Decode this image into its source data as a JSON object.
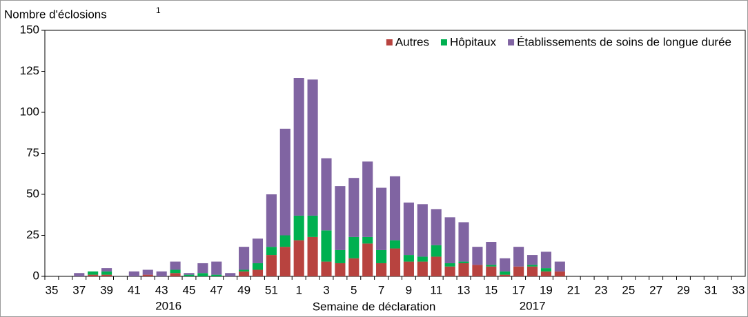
{
  "chart_data": {
    "type": "stacked_bar",
    "y_label": "Nombre d'éclosions",
    "y_label_superscript": "1",
    "x_label": "Semaine de déclaration",
    "x_group_labels": [
      "2016",
      "2017"
    ],
    "categories": [
      "35",
      null,
      "37",
      null,
      "39",
      null,
      "41",
      null,
      "43",
      null,
      "45",
      null,
      "47",
      null,
      "49",
      null,
      "51",
      null,
      "1",
      null,
      "3",
      null,
      "5",
      null,
      "7",
      null,
      "9",
      null,
      "11",
      null,
      "13",
      null,
      "15",
      null,
      "17",
      null,
      "19",
      null,
      "21",
      null,
      "23",
      null,
      "25",
      null,
      "27",
      null,
      "29",
      null,
      "31",
      null,
      "33"
    ],
    "series": [
      {
        "name": "Autres",
        "color": "#b8433f",
        "values": [
          0,
          0,
          0,
          1,
          1,
          0,
          0,
          1,
          0,
          2,
          0,
          0,
          0,
          0,
          3,
          4,
          13,
          18,
          22,
          24,
          9,
          8,
          11,
          20,
          8,
          17,
          9,
          9,
          12,
          6,
          8,
          7,
          6,
          1,
          6,
          6,
          3,
          3,
          0,
          0,
          0,
          0,
          0,
          0,
          0,
          0,
          0,
          0,
          0,
          0,
          0
        ]
      },
      {
        "name": "Hôpitaux",
        "color": "#00b050",
        "values": [
          0,
          0,
          0,
          2,
          2,
          0,
          0,
          0,
          0,
          2,
          1,
          2,
          1,
          0,
          1,
          4,
          5,
          7,
          15,
          13,
          19,
          8,
          13,
          4,
          8,
          5,
          4,
          3,
          7,
          2,
          1,
          0,
          1,
          2,
          0,
          1,
          2,
          0,
          0,
          0,
          0,
          0,
          0,
          0,
          0,
          0,
          0,
          0,
          0,
          0,
          0
        ]
      },
      {
        "name": "Établissements de soins de longue durée",
        "color": "#8064a2",
        "values": [
          0,
          0,
          2,
          0,
          2,
          0,
          3,
          3,
          3,
          5,
          1,
          6,
          8,
          2,
          14,
          15,
          32,
          65,
          84,
          83,
          44,
          39,
          36,
          46,
          38,
          39,
          32,
          32,
          22,
          28,
          24,
          11,
          14,
          8,
          12,
          6,
          10,
          6,
          0,
          0,
          0,
          0,
          0,
          0,
          0,
          0,
          0,
          0,
          0,
          0,
          0
        ]
      }
    ],
    "ylim": [
      0,
      150
    ],
    "yticks": [
      0,
      25,
      50,
      75,
      100,
      125,
      150
    ],
    "legend": "top-right"
  }
}
